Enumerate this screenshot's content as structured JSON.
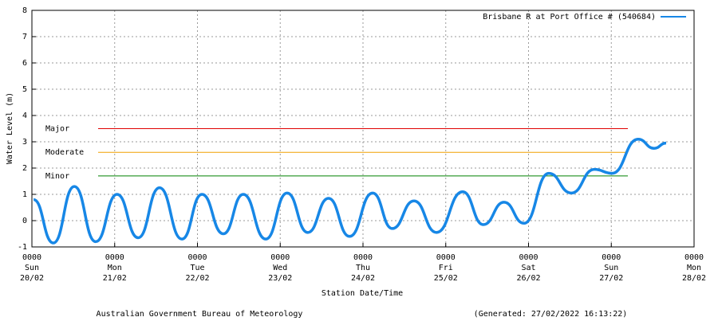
{
  "chart_data": {
    "type": "line",
    "ylabel": "Water Level (m)",
    "xlabel": "Station Date/Time",
    "footer_left": "Australian Government Bureau of Meteorology",
    "footer_right": "(Generated: 27/02/2022 16:13:22)",
    "ylim": [
      -1,
      8
    ],
    "yticks": [
      -1,
      0,
      1,
      2,
      3,
      4,
      5,
      6,
      7,
      8
    ],
    "xlim": [
      0,
      192
    ],
    "xticks": [
      {
        "value": 0,
        "label": "0000\nSun\n20/02"
      },
      {
        "value": 24,
        "label": "0000\nMon\n21/02"
      },
      {
        "value": 48,
        "label": "0000\nTue\n22/02"
      },
      {
        "value": 72,
        "label": "0000\nWed\n23/02"
      },
      {
        "value": 96,
        "label": "0000\nThu\n24/02"
      },
      {
        "value": 120,
        "label": "0000\nFri\n25/02"
      },
      {
        "value": 144,
        "label": "0000\nSat\n26/02"
      },
      {
        "value": 168,
        "label": "0000\nSun\n27/02"
      },
      {
        "value": 192,
        "label": "0000\nMon\n28/02"
      }
    ],
    "grid": true,
    "legend_position": "top-right",
    "x": [
      0.5,
      6.2,
      12.3,
      18.5,
      24.7,
      30.8,
      37.0,
      43.5,
      49.3,
      55.5,
      61.3,
      67.8,
      74.0,
      80.0,
      86.0,
      92.1,
      98.8,
      104.5,
      110.8,
      117.3,
      124.9,
      130.9,
      136.9,
      142.7,
      149.9,
      156.4,
      163.1,
      168.2,
      175.8,
      180.4,
      183.9
    ],
    "series": [
      {
        "name": "Brisbane R at Port Office # (540684)",
        "color": "#1787e6",
        "values": [
          0.8,
          -0.85,
          1.3,
          -0.8,
          1.0,
          -0.65,
          1.25,
          -0.7,
          1.0,
          -0.5,
          1.0,
          -0.7,
          1.05,
          -0.45,
          0.85,
          -0.6,
          1.05,
          -0.3,
          0.75,
          -0.45,
          1.1,
          -0.15,
          0.7,
          -0.1,
          1.8,
          1.05,
          1.95,
          1.8,
          3.1,
          2.75,
          2.95
        ]
      }
    ],
    "thresholds": [
      {
        "label": "Major",
        "value": 3.5,
        "color": "#e00000"
      },
      {
        "label": "Moderate",
        "value": 2.6,
        "color": "#f0a000"
      },
      {
        "label": "Minor",
        "value": 1.7,
        "color": "#008000"
      }
    ],
    "threshold_x": [
      19.2,
      172.8
    ]
  }
}
